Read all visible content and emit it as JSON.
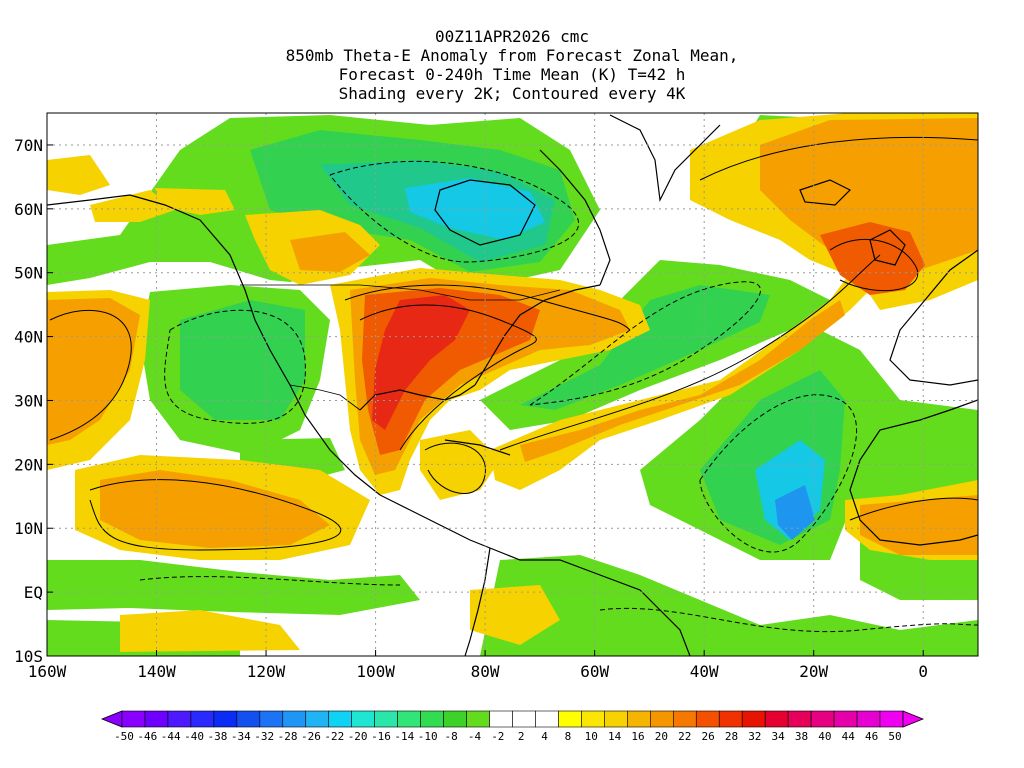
{
  "header": {
    "run": "00Z11APR2026 cmc",
    "line2": "850mb Theta-E Anomaly from Forecast Zonal Mean,",
    "line3": "Forecast 0-240h Time Mean (K) T=42 h",
    "line4": "Shading every 2K; Contoured every 4K"
  },
  "map": {
    "lon_range": [
      -160,
      10
    ],
    "lat_range": [
      -10,
      75
    ],
    "x_ticks": [
      {
        "lon": -160,
        "label": "160W"
      },
      {
        "lon": -140,
        "label": "140W"
      },
      {
        "lon": -120,
        "label": "120W"
      },
      {
        "lon": -100,
        "label": "100W"
      },
      {
        "lon": -80,
        "label": "80W"
      },
      {
        "lon": -60,
        "label": "60W"
      },
      {
        "lon": -40,
        "label": "40W"
      },
      {
        "lon": -20,
        "label": "20W"
      },
      {
        "lon": 0,
        "label": "0"
      }
    ],
    "y_ticks": [
      {
        "lat": 70,
        "label": "70N"
      },
      {
        "lat": 60,
        "label": "60N"
      },
      {
        "lat": 50,
        "label": "50N"
      },
      {
        "lat": 40,
        "label": "40N"
      },
      {
        "lat": 30,
        "label": "30N"
      },
      {
        "lat": 20,
        "label": "20N"
      },
      {
        "lat": 10,
        "label": "10N"
      },
      {
        "lat": 0,
        "label": "EQ"
      },
      {
        "lat": -10,
        "label": "10S"
      }
    ],
    "grid": "dotted"
  },
  "colorbar": {
    "labels": [
      "-50",
      "-46",
      "-44",
      "-40",
      "-38",
      "-34",
      "-32",
      "-28",
      "-26",
      "-22",
      "-20",
      "-16",
      "-14",
      "-10",
      "-8",
      "-4",
      "-2",
      "2",
      "4",
      "8",
      "10",
      "14",
      "16",
      "20",
      "22",
      "26",
      "28",
      "32",
      "34",
      "38",
      "40",
      "44",
      "46",
      "50"
    ],
    "colors": [
      "#8a00ff",
      "#6e00ff",
      "#4d1aff",
      "#2a2aff",
      "#0a2cf5",
      "#1450f0",
      "#1c74f5",
      "#1f96f5",
      "#20b4f5",
      "#10d2f5",
      "#1ee6d2",
      "#2ae6aa",
      "#30e678",
      "#32dc50",
      "#3cd228",
      "#64dc1e",
      "#ffffff",
      "#ffffff",
      "#ffffff",
      "#ffff00",
      "#fae600",
      "#f5d200",
      "#f5b400",
      "#f59600",
      "#f57800",
      "#f55000",
      "#f03200",
      "#e61400",
      "#e60032",
      "#e6005a",
      "#e60082",
      "#e600aa",
      "#e600d2",
      "#f000f0"
    ],
    "arrow_left_color": "#8a00ff",
    "arrow_right_color": "#f000f0"
  },
  "palette": {
    "warm_light": "#f5d200",
    "warm_mid": "#f5a000",
    "warm_deep": "#f05a00",
    "warm_hot": "#e62814",
    "cool_light": "#64dc1e",
    "cool_mid": "#32d250",
    "cool_deep": "#20c88c",
    "cool_cold": "#14c8e6",
    "cool_blue": "#1e96f0"
  }
}
